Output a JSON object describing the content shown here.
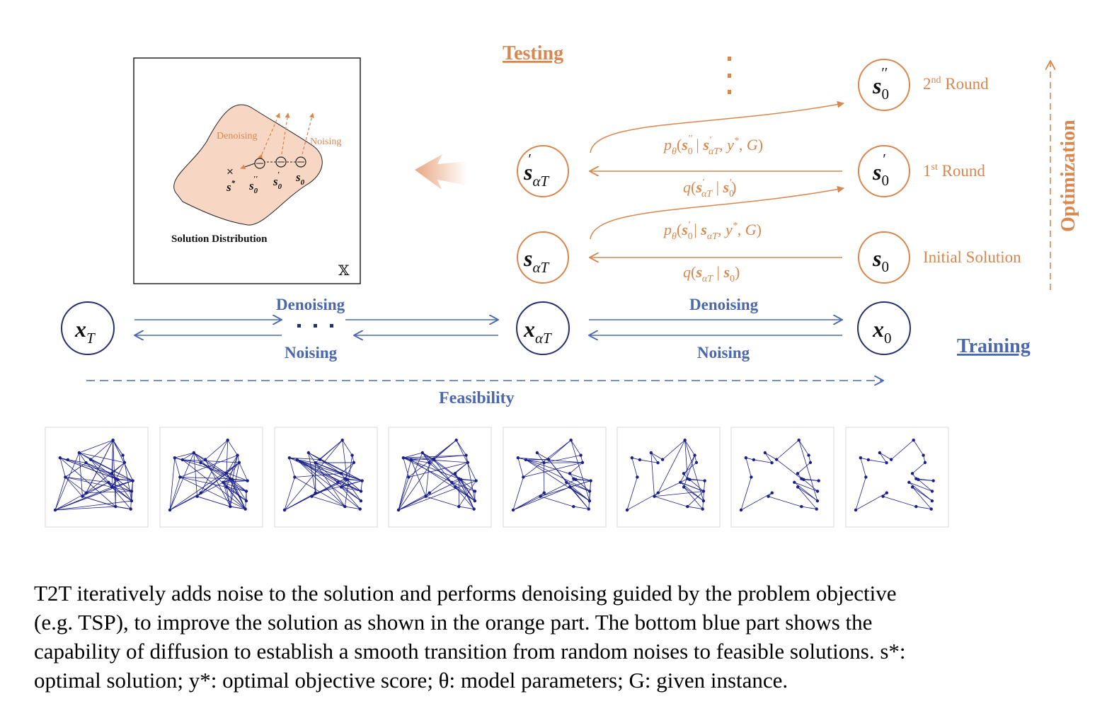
{
  "colors": {
    "orange": "#D9874F",
    "blue": "#4A68AE",
    "navy": "#27306E",
    "dot": "#1b1f8a",
    "blob": "#F7D7C4"
  },
  "labels": {
    "testing": "Testing",
    "training": "Training",
    "optimization": "Optimization",
    "feasibility": "Feasibility",
    "denoising": "Denoising",
    "noising": "Noising",
    "second_round": "2nd Round",
    "first_round": "1st Round",
    "initial_solution": "Initial Solution"
  },
  "inset": {
    "title": "Solution Distribution",
    "space_symbol": "𝕏",
    "denoising": "Denoising",
    "noising": "Noising"
  },
  "nodes": {
    "x_T": "x_T",
    "x_aT": "x_αT",
    "x_0": "x_0",
    "s_aT": "s_αT",
    "s_aT_prime": "s'_αT",
    "s_0": "s_0",
    "s_0_prime": "s'_0",
    "s_0_dprime": "s''_0"
  },
  "formulas": {
    "p_second": "pθ(s''0 | s'αT, y*, G)",
    "q_second": "q(s'αT | s'0)",
    "p_first": "pθ(s'0 | sαT, y*, G)",
    "q_first": "q(sαT | s0)"
  },
  "caption": [
    "T2T iteratively adds noise to the solution and performs denoising guided by the problem objective",
    "(e.g. TSP), to improve the solution as shown in the orange part. The bottom blue part shows the",
    "capability of diffusion to establish a smooth transition from random noises to feasible solutions. s*:",
    "optimal solution; y*: optimal objective score; θ: model parameters; G: given instance."
  ]
}
